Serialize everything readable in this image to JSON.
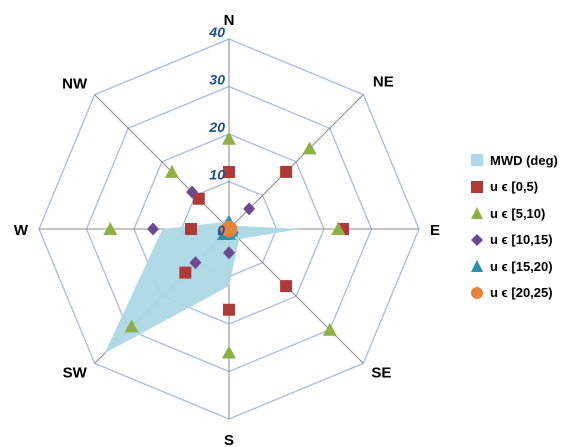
{
  "chart_data": {
    "type": "radar",
    "directions": [
      "N",
      "NE",
      "E",
      "SE",
      "S",
      "SW",
      "W",
      "NW"
    ],
    "radial_ticks": [
      "0",
      "10",
      "20",
      "30",
      "40"
    ],
    "rmax": 40,
    "series": [
      {
        "name": "MWD (deg)",
        "kind": "area",
        "color": "#add8e6",
        "values": [
          3,
          1,
          15,
          3,
          12,
          37,
          14,
          2
        ]
      },
      {
        "name": "u ϵ [0,5)",
        "kind": "marker",
        "shape": "square",
        "color": "#b03a3a",
        "values": [
          12,
          17,
          24,
          17,
          17,
          13,
          8,
          9
        ]
      },
      {
        "name": "u ϵ [5,10)",
        "kind": "marker",
        "shape": "triangle",
        "color": "#8fb045",
        "values": [
          19,
          24,
          23,
          30,
          26,
          29,
          25,
          17
        ]
      },
      {
        "name": "u ϵ [10,15)",
        "kind": "marker",
        "shape": "diamond",
        "color": "#6b4a8f",
        "values": [
          0.5,
          6,
          0.5,
          1,
          5,
          10,
          16,
          11
        ]
      },
      {
        "name": "u ϵ [15,20)",
        "kind": "marker",
        "shape": "triangle",
        "color": "#2e8fa8",
        "values": [
          1.5,
          0.5,
          0.5,
          0.5,
          1,
          1.5,
          1,
          0.5
        ]
      },
      {
        "name": "u ϵ [20,25)",
        "kind": "marker",
        "shape": "circle",
        "color": "#e8843a",
        "values": [
          0.5,
          0.5,
          0.5,
          0.5,
          0.5,
          0.5,
          0.5,
          0.5
        ]
      }
    ],
    "grid_color": "#a8bce0",
    "spoke_color": "#8a8a8a",
    "legend_position": "right"
  }
}
